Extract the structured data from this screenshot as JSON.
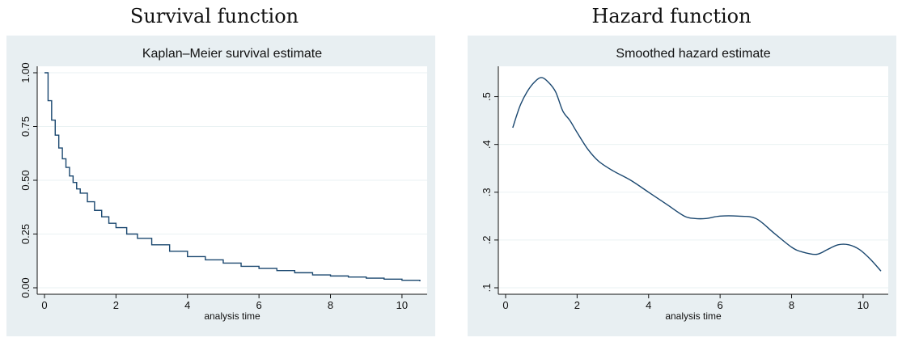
{
  "figure_titles": [
    "Survival function",
    "Hazard function"
  ],
  "colors": {
    "panel_bg": "#e8eff2",
    "plot_bg": "#ffffff",
    "line": "#1a476f",
    "grid": "#eaf2f3",
    "axis": "#111111"
  },
  "chart_data": [
    {
      "type": "line",
      "step": true,
      "title": "Kaplan–Meier survival estimate",
      "xlabel": "analysis time",
      "ylabel": "",
      "xlim": [
        0,
        10.5
      ],
      "ylim": [
        0,
        1
      ],
      "xticks": [
        0,
        2,
        4,
        6,
        8,
        10
      ],
      "yticks": [
        0,
        0.25,
        0.5,
        0.75,
        1
      ],
      "ytick_labels": [
        "0.00",
        "0.25",
        "0.50",
        "0.75",
        "1.00"
      ],
      "grid": true,
      "series": [
        {
          "x": [
            0,
            0.1,
            0.2,
            0.3,
            0.4,
            0.5,
            0.6,
            0.7,
            0.8,
            0.9,
            1.0,
            1.2,
            1.4,
            1.6,
            1.8,
            2.0,
            2.3,
            2.6,
            3.0,
            3.5,
            4.0,
            4.5,
            5.0,
            5.5,
            6.0,
            6.5,
            7.0,
            7.5,
            8.0,
            8.5,
            9.0,
            9.5,
            10.0,
            10.5
          ],
          "y": [
            1.0,
            0.87,
            0.78,
            0.71,
            0.65,
            0.6,
            0.56,
            0.52,
            0.49,
            0.46,
            0.44,
            0.4,
            0.36,
            0.33,
            0.3,
            0.28,
            0.25,
            0.23,
            0.2,
            0.17,
            0.145,
            0.13,
            0.115,
            0.1,
            0.09,
            0.08,
            0.07,
            0.06,
            0.055,
            0.05,
            0.045,
            0.04,
            0.035,
            0.03
          ]
        }
      ]
    },
    {
      "type": "line",
      "title": "Smoothed hazard estimate",
      "xlabel": "analysis time",
      "ylabel": "",
      "xlim": [
        0,
        10.5
      ],
      "ylim": [
        0.1,
        0.55
      ],
      "xticks": [
        0,
        2,
        4,
        6,
        8,
        10
      ],
      "yticks": [
        0.1,
        0.2,
        0.3,
        0.4,
        0.5
      ],
      "ytick_labels": [
        ".1",
        ".2",
        ".3",
        ".4",
        ".5"
      ],
      "grid": true,
      "series": [
        {
          "x": [
            0.2,
            0.4,
            0.6,
            0.8,
            1.0,
            1.2,
            1.4,
            1.6,
            1.8,
            2.0,
            2.3,
            2.6,
            3.0,
            3.5,
            4.0,
            4.5,
            5.0,
            5.3,
            5.6,
            6.0,
            6.5,
            7.0,
            7.5,
            8.0,
            8.3,
            8.7,
            9.0,
            9.3,
            9.6,
            9.9,
            10.2,
            10.5
          ],
          "y": [
            0.435,
            0.48,
            0.51,
            0.53,
            0.54,
            0.53,
            0.51,
            0.47,
            0.45,
            0.425,
            0.39,
            0.365,
            0.345,
            0.325,
            0.3,
            0.275,
            0.25,
            0.245,
            0.245,
            0.25,
            0.25,
            0.245,
            0.215,
            0.185,
            0.175,
            0.17,
            0.18,
            0.19,
            0.19,
            0.18,
            0.16,
            0.135
          ]
        }
      ]
    }
  ]
}
